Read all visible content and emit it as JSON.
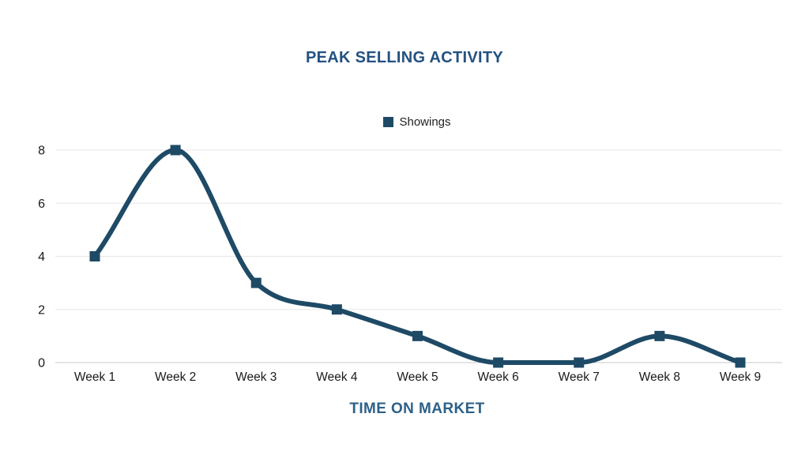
{
  "chart_data": {
    "type": "line",
    "title": "PEAK SELLING ACTIVITY",
    "xlabel": "TIME ON MARKET",
    "ylabel": "",
    "categories": [
      "Week 1",
      "Week 2",
      "Week 3",
      "Week 4",
      "Week 5",
      "Week 6",
      "Week 7",
      "Week 8",
      "Week 9"
    ],
    "series": [
      {
        "name": "Showings",
        "values": [
          4,
          8,
          3,
          2,
          1,
          0,
          0,
          1,
          0
        ],
        "color": "#1e4a66",
        "marker": "square"
      }
    ],
    "ylim": [
      0,
      8
    ],
    "ytick_step": 2,
    "yticks": [
      0,
      2,
      4,
      6,
      8
    ],
    "grid": true,
    "legend_position": "top-center",
    "line_style": "smooth-monotone"
  },
  "style": {
    "title_color": "#235180",
    "xlabel_color": "#2d6189",
    "grid_color": "#e7e7e7",
    "axis_line_color": "#c9c9c9",
    "tick_text_color": "#1a1a1a",
    "legend_text_color": "#212121",
    "background": "#ffffff"
  }
}
